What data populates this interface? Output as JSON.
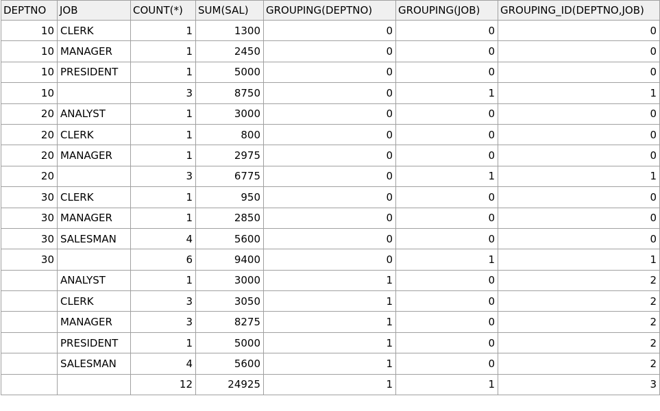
{
  "results": {
    "columns": [
      "DEPTNO",
      "JOB",
      "COUNT(*)",
      "SUM(SAL)",
      "GROUPING(DEPTNO)",
      "GROUPING(JOB)",
      "GROUPING_ID(DEPTNO,JOB)"
    ],
    "rows": [
      [
        "10",
        "CLERK",
        "1",
        "1300",
        "0",
        "0",
        "0"
      ],
      [
        "10",
        "MANAGER",
        "1",
        "2450",
        "0",
        "0",
        "0"
      ],
      [
        "10",
        "PRESIDENT",
        "1",
        "5000",
        "0",
        "0",
        "0"
      ],
      [
        "10",
        "",
        "3",
        "8750",
        "0",
        "1",
        "1"
      ],
      [
        "20",
        "ANALYST",
        "1",
        "3000",
        "0",
        "0",
        "0"
      ],
      [
        "20",
        "CLERK",
        "1",
        "800",
        "0",
        "0",
        "0"
      ],
      [
        "20",
        "MANAGER",
        "1",
        "2975",
        "0",
        "0",
        "0"
      ],
      [
        "20",
        "",
        "3",
        "6775",
        "0",
        "1",
        "1"
      ],
      [
        "30",
        "CLERK",
        "1",
        "950",
        "0",
        "0",
        "0"
      ],
      [
        "30",
        "MANAGER",
        "1",
        "2850",
        "0",
        "0",
        "0"
      ],
      [
        "30",
        "SALESMAN",
        "4",
        "5600",
        "0",
        "0",
        "0"
      ],
      [
        "30",
        "",
        "6",
        "9400",
        "0",
        "1",
        "1"
      ],
      [
        "",
        "ANALYST",
        "1",
        "3000",
        "1",
        "0",
        "2"
      ],
      [
        "",
        "CLERK",
        "3",
        "3050",
        "1",
        "0",
        "2"
      ],
      [
        "",
        "MANAGER",
        "3",
        "8275",
        "1",
        "0",
        "2"
      ],
      [
        "",
        "PRESIDENT",
        "1",
        "5000",
        "1",
        "0",
        "2"
      ],
      [
        "",
        "SALESMAN",
        "4",
        "5600",
        "1",
        "0",
        "2"
      ],
      [
        "",
        "",
        "12",
        "24925",
        "1",
        "1",
        "3"
      ]
    ]
  }
}
